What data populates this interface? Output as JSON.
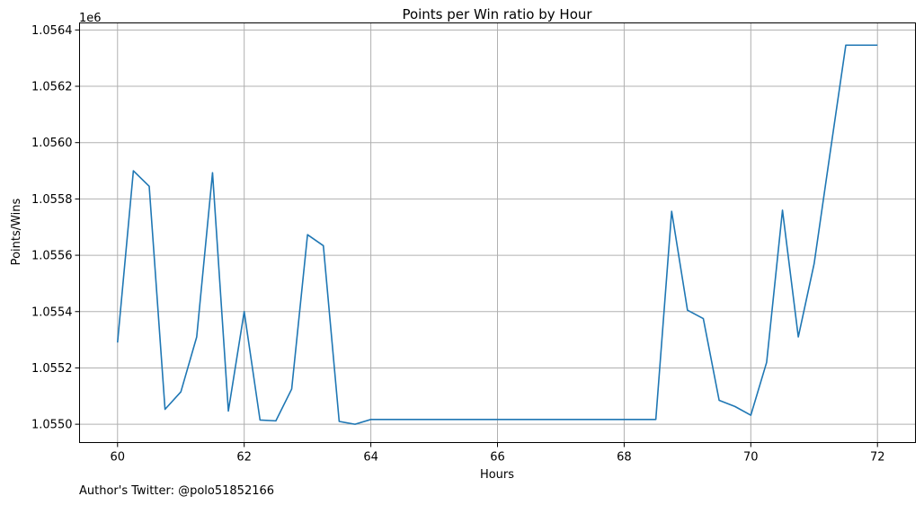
{
  "chart_data": {
    "type": "line",
    "title": "Points per Win ratio by Hour",
    "xlabel": "Hours",
    "ylabel": "Points/Wins",
    "offset_text": "1e6",
    "footnote": "Author's Twitter: @polo51852166",
    "xlim": [
      59.4,
      72.6
    ],
    "ylim": [
      1054935,
      1056425
    ],
    "x_ticks": [
      60,
      62,
      64,
      66,
      68,
      70,
      72
    ],
    "y_ticks": [
      1055000,
      1055200,
      1055400,
      1055600,
      1055800,
      1056000,
      1056200,
      1056400
    ],
    "y_tick_labels": [
      "1.0550",
      "1.0552",
      "1.0554",
      "1.0556",
      "1.0558",
      "1.0560",
      "1.0562",
      "1.0564"
    ],
    "grid": true,
    "line_color": "#1f77b4",
    "series": [
      {
        "x": [
          60.0,
          60.25,
          60.5,
          60.75,
          61.0,
          61.25,
          61.5,
          61.75,
          62.0,
          62.25,
          62.5,
          62.75,
          63.0,
          63.25,
          63.5,
          63.75,
          64.0,
          64.25,
          64.5,
          64.75,
          65.0,
          65.25,
          65.5,
          65.75,
          66.0,
          66.25,
          66.5,
          66.75,
          67.0,
          67.25,
          67.5,
          67.75,
          68.0,
          68.25,
          68.5,
          68.75,
          69.0,
          69.25,
          69.5,
          69.75,
          70.0,
          70.25,
          70.5,
          70.75,
          71.0,
          71.25,
          71.5,
          71.75,
          72.0
        ],
        "y": [
          1055290,
          1055900,
          1055845,
          1055053,
          1055115,
          1055310,
          1055893,
          1055047,
          1055400,
          1055015,
          1055012,
          1055125,
          1055673,
          1055634,
          1055010,
          1055000,
          1055017,
          1055017,
          1055017,
          1055017,
          1055017,
          1055017,
          1055017,
          1055017,
          1055017,
          1055017,
          1055017,
          1055017,
          1055017,
          1055017,
          1055017,
          1055017,
          1055017,
          1055017,
          1055017,
          1055756,
          1055405,
          1055375,
          1055085,
          1055063,
          1055032,
          1055220,
          1055760,
          1055310,
          1055570,
          1055960,
          1056346,
          1056346,
          1056346
        ]
      }
    ]
  }
}
